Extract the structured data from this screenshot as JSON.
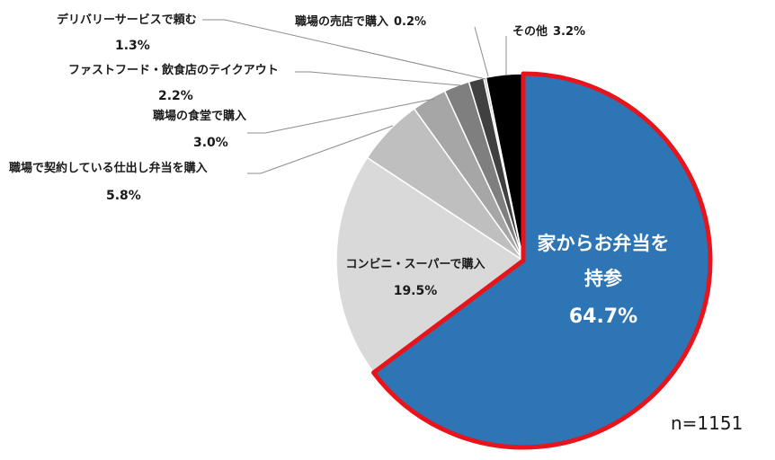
{
  "chart_data": {
    "type": "pie",
    "title": "",
    "start_angle_deg": 0,
    "direction": "clockwise",
    "slices": [
      {
        "label": "家からお弁当を持参",
        "value": 64.7,
        "display": "64.7%",
        "color": "#2E75B6",
        "highlight_border": "#E8131B"
      },
      {
        "label": "コンビニ・スーパーで購入",
        "value": 19.5,
        "display": "19.5%",
        "color": "#D9D9D9"
      },
      {
        "label": "職場で契約している仕出し弁当を購入",
        "value": 5.8,
        "display": "5.8%",
        "color": "#BFBFBF"
      },
      {
        "label": "職場の食堂で購入",
        "value": 3.0,
        "display": "3.0%",
        "color": "#A6A6A6"
      },
      {
        "label": "ファストフード・飲食店のテイクアウト",
        "value": 2.2,
        "display": "2.2%",
        "color": "#7F7F7F"
      },
      {
        "label": "デリバリーサービスで頼む",
        "value": 1.3,
        "display": "1.3%",
        "color": "#404040"
      },
      {
        "label": "職場の売店で購入",
        "value": 0.2,
        "display": "0.2%",
        "color": "#C0C0C0"
      },
      {
        "label": "その他",
        "value": 3.2,
        "display": "3.2%",
        "color": "#000000"
      }
    ]
  },
  "main_label_line1": "家からお弁当を",
  "main_label_line2": "持参",
  "sample_size": "n=1151"
}
